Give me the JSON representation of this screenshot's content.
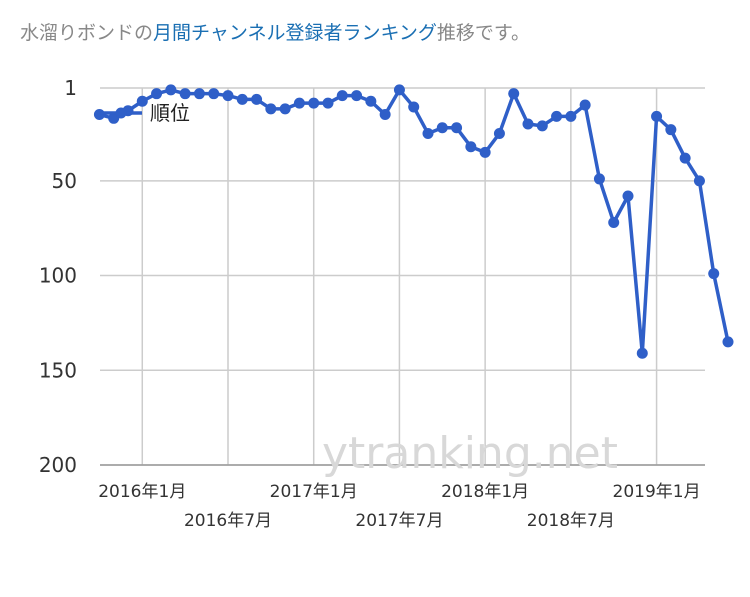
{
  "title": {
    "prefix": "水溜りボンドの",
    "link": "月間チャンネル登録者ランキング",
    "suffix": "推移です。"
  },
  "watermark": "ytranking.net",
  "colors": {
    "series": "#2f5fc8",
    "grid": "#cccccc",
    "title_link": "#1a6fb3",
    "title_text": "#888888"
  },
  "chart_data": {
    "type": "line",
    "title": "",
    "xlabel": "",
    "ylabel": "",
    "y_reversed": true,
    "ylim": [
      1,
      200
    ],
    "yticks": [
      "1",
      "50",
      "100",
      "150",
      "200"
    ],
    "yticks_values": [
      1,
      50,
      100,
      150,
      200
    ],
    "xticks_row1": [
      "2016年1月",
      "2017年1月",
      "2018年1月",
      "2019年1月"
    ],
    "xticks_row2": [
      "2016年7月",
      "2017年7月",
      "2018年7月"
    ],
    "xlim": [
      "2015-10",
      "2019-04"
    ],
    "grid": true,
    "legend_position": "top-left",
    "series": [
      {
        "name": "順位",
        "color": "#2f5fc8",
        "x": [
          "2015-10",
          "2015-11",
          "2015-12",
          "2016-01",
          "2016-02",
          "2016-03",
          "2016-04",
          "2016-05",
          "2016-06",
          "2016-07",
          "2016-08",
          "2016-09",
          "2016-10",
          "2016-11",
          "2016-12",
          "2017-01",
          "2017-02",
          "2017-03",
          "2017-04",
          "2017-05",
          "2017-06",
          "2017-07",
          "2017-08",
          "2017-09",
          "2017-10",
          "2017-11",
          "2017-12",
          "2018-01",
          "2018-02",
          "2018-03",
          "2018-04",
          "2018-05",
          "2018-06",
          "2018-07",
          "2018-08",
          "2018-09",
          "2018-10",
          "2018-11",
          "2018-12",
          "2019-01",
          "2019-02",
          "2019-03",
          "2019-04",
          "2019-05",
          "2019-06"
        ],
        "values": [
          15,
          17,
          13,
          8,
          4,
          2,
          4,
          4,
          4,
          5,
          7,
          7,
          12,
          12,
          9,
          9,
          9,
          5,
          5,
          8,
          15,
          2,
          11,
          25,
          22,
          22,
          32,
          35,
          25,
          4,
          20,
          21,
          16,
          16,
          10,
          49,
          72,
          58,
          141,
          16,
          23,
          38,
          50,
          99,
          135
        ]
      }
    ]
  }
}
